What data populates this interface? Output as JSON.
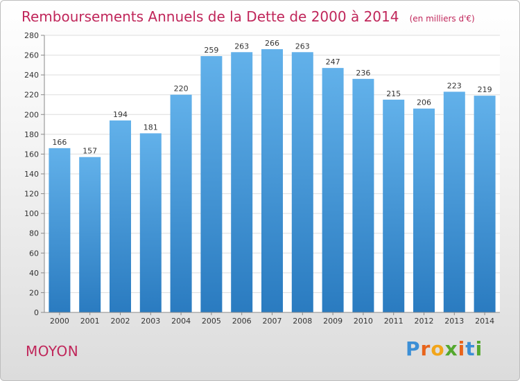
{
  "chart_data": {
    "type": "bar",
    "title": "Remboursements Annuels de la Dette de 2000 à 2014",
    "unit": "(en milliers d'€)",
    "categories": [
      "2000",
      "2001",
      "2002",
      "2003",
      "2004",
      "2005",
      "2006",
      "2007",
      "2008",
      "2009",
      "2010",
      "2011",
      "2012",
      "2013",
      "2014"
    ],
    "values": [
      166,
      157,
      194,
      181,
      220,
      259,
      263,
      266,
      263,
      247,
      236,
      215,
      206,
      223,
      219
    ],
    "ylim": [
      0,
      280
    ],
    "yticks": [
      0,
      20,
      40,
      60,
      80,
      100,
      120,
      140,
      160,
      180,
      200,
      220,
      240,
      260,
      280
    ],
    "xlabel": "",
    "ylabel": "",
    "grid": true,
    "legend": "none"
  },
  "footer": {
    "commune": "MOYON",
    "brand": "Proxiti",
    "brand_letters": [
      "P",
      "r",
      "o",
      "x",
      "i",
      "t",
      "i"
    ]
  },
  "colors": {
    "title": "#c0265a",
    "bar_top": "#62b1ea",
    "bar_bottom": "#2a7bc0",
    "brand_letters": [
      "#3c8fd6",
      "#e8641b",
      "#f2a51a",
      "#54a82e",
      "#e8641b",
      "#3c8fd6",
      "#54a82e"
    ]
  }
}
